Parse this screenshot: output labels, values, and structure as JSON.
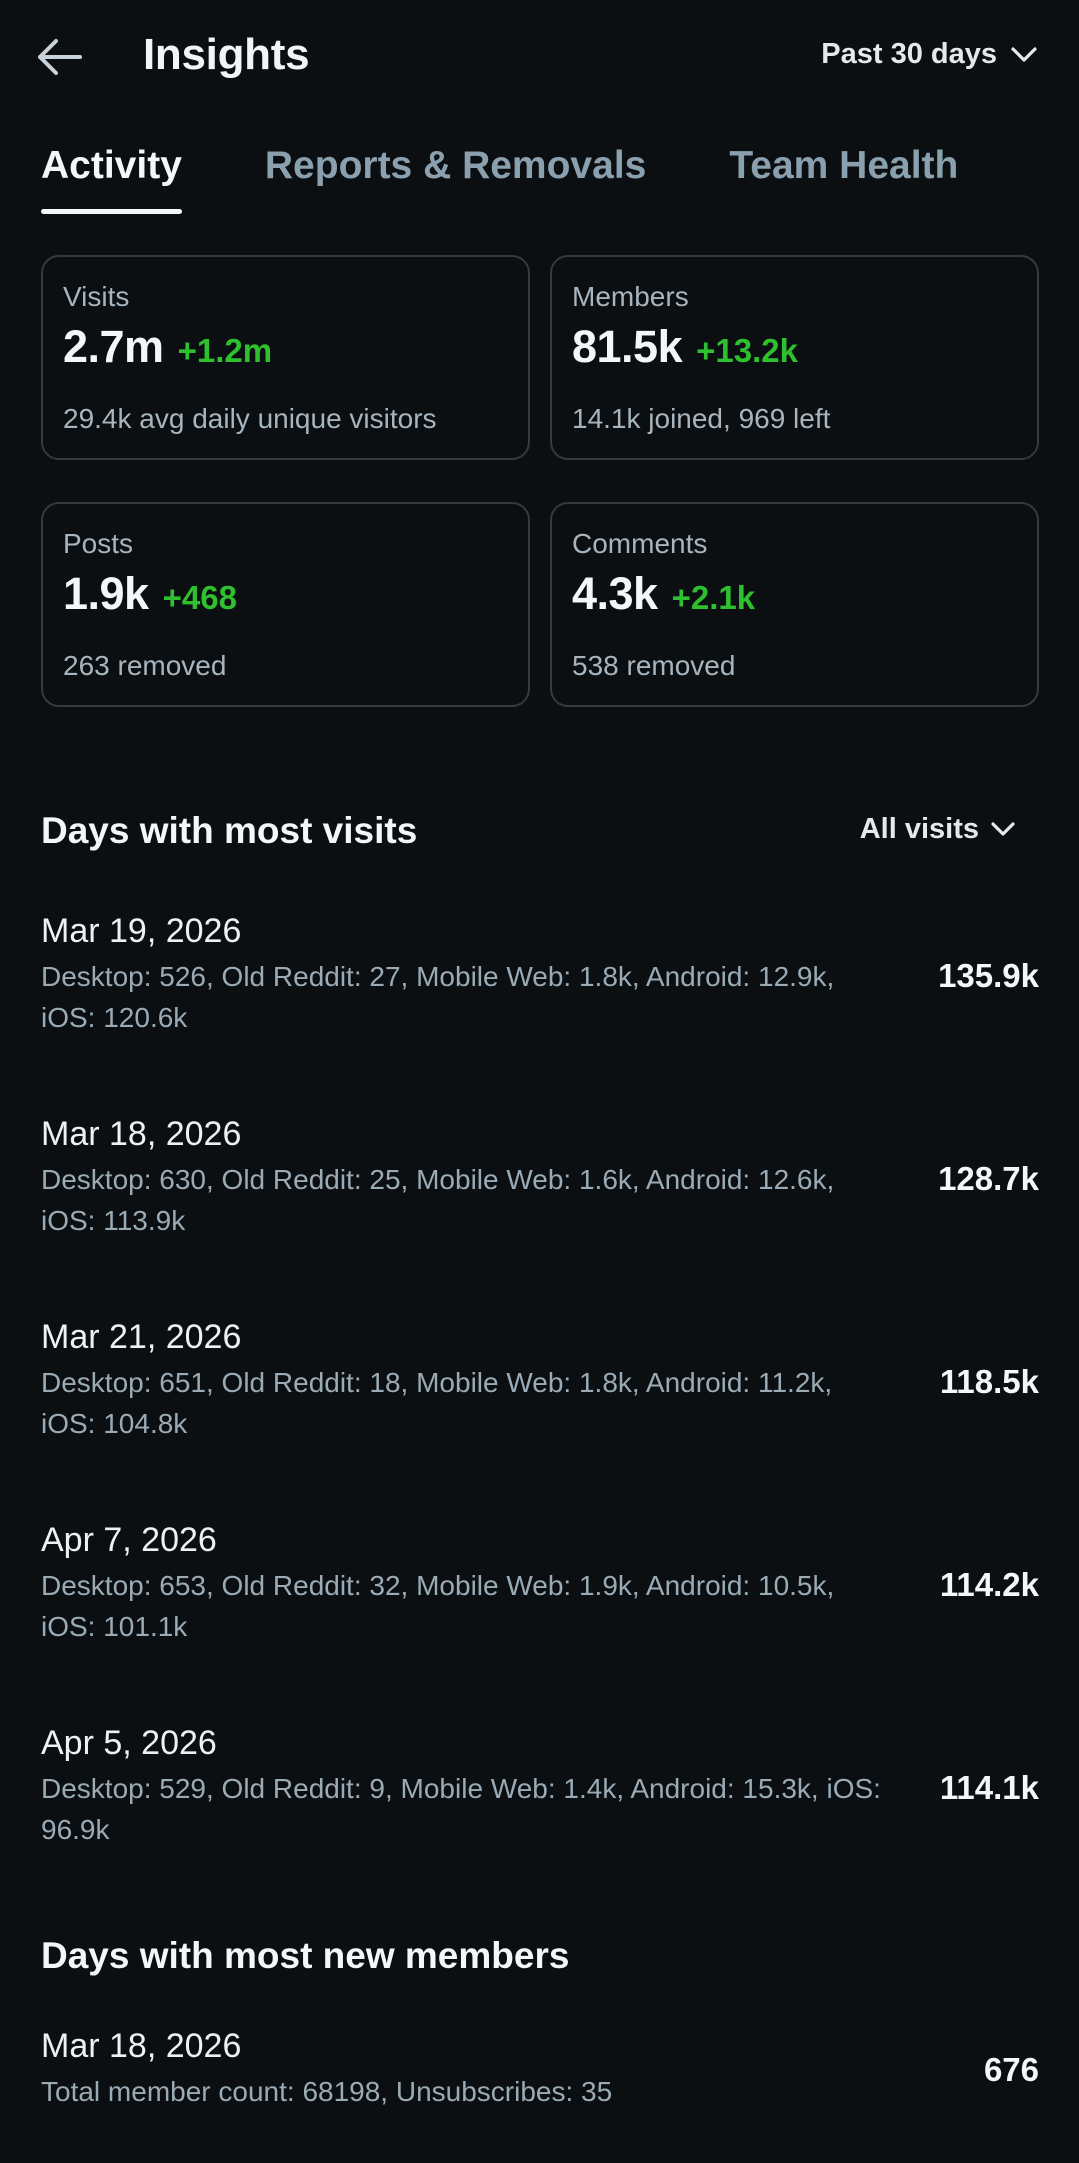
{
  "header": {
    "title": "Insights",
    "back_icon": "arrow-left-icon",
    "range_label": "Past 30 days"
  },
  "tabs": [
    {
      "label": "Activity",
      "active": true
    },
    {
      "label": "Reports & Removals",
      "active": false
    },
    {
      "label": "Team Health",
      "active": false
    }
  ],
  "stats": {
    "visits": {
      "label": "Visits",
      "value": "2.7m",
      "delta": "+1.2m",
      "sub": "29.4k avg daily unique visitors"
    },
    "members": {
      "label": "Members",
      "value": "81.5k",
      "delta": "+13.2k",
      "sub": "14.1k joined, 969 left"
    },
    "posts": {
      "label": "Posts",
      "value": "1.9k",
      "delta": "+468",
      "sub": "263 removed"
    },
    "comments": {
      "label": "Comments",
      "value": "4.3k",
      "delta": "+2.1k",
      "sub": "538 removed"
    }
  },
  "colors": {
    "background": "#0b0f12",
    "positive": "#2ec02e",
    "muted": "#9aabb6",
    "border": "#333a40"
  },
  "most_visits": {
    "title": "Days with most visits",
    "filter_label": "All visits",
    "rows": [
      {
        "date": "Mar 19, 2026",
        "detail": "Desktop: 526, Old Reddit: 27, Mobile Web: 1.8k, Android: 12.9k, iOS: 120.6k",
        "total": "135.9k"
      },
      {
        "date": "Mar 18, 2026",
        "detail": "Desktop: 630, Old Reddit: 25, Mobile Web: 1.6k, Android: 12.6k, iOS: 113.9k",
        "total": "128.7k"
      },
      {
        "date": "Mar 21, 2026",
        "detail": "Desktop: 651, Old Reddit: 18, Mobile Web: 1.8k, Android: 11.2k, iOS: 104.8k",
        "total": "118.5k"
      },
      {
        "date": "Apr 7, 2026",
        "detail": "Desktop: 653, Old Reddit: 32, Mobile Web: 1.9k, Android: 10.5k, iOS: 101.1k",
        "total": "114.2k"
      },
      {
        "date": "Apr 5, 2026",
        "detail": "Desktop: 529, Old Reddit: 9, Mobile Web: 1.4k, Android: 15.3k, iOS: 96.9k",
        "total": "114.1k"
      }
    ]
  },
  "most_members": {
    "title": "Days with most new members",
    "rows": [
      {
        "date": "Mar 18, 2026",
        "detail": "Total member count: 68198, Unsubscribes: 35",
        "total": "676"
      }
    ]
  }
}
